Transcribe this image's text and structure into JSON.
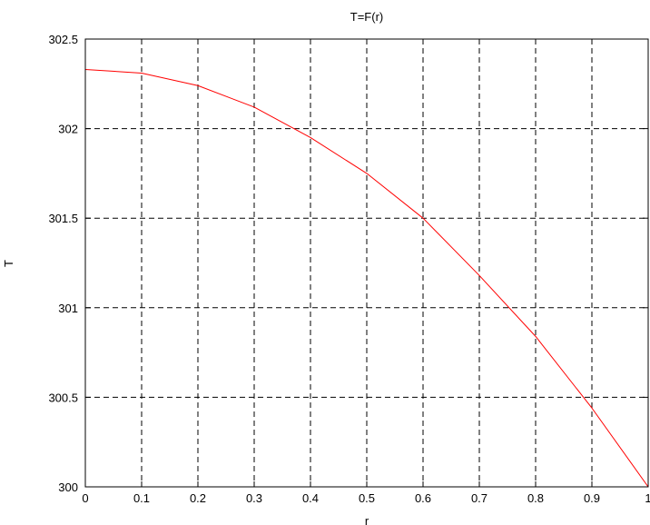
{
  "chart_data": {
    "type": "line",
    "title": "T=F(r)",
    "xlabel": "r",
    "ylabel": "T",
    "xlim": [
      0,
      1
    ],
    "ylim": [
      300,
      302.5
    ],
    "xticks": [
      0,
      0.1,
      0.2,
      0.3,
      0.4,
      0.5,
      0.6,
      0.7,
      0.8,
      0.9,
      1
    ],
    "yticks": [
      300,
      300.5,
      301,
      301.5,
      302,
      302.5
    ],
    "xtick_labels": [
      "0",
      "0.1",
      "0.2",
      "0.3",
      "0.4",
      "0.5",
      "0.6",
      "0.7",
      "0.8",
      "0.9",
      "1"
    ],
    "ytick_labels": [
      "300",
      "300.5",
      "301",
      "301.5",
      "302",
      "302.5"
    ],
    "grid": true,
    "series": [
      {
        "color": "#ff0000",
        "x": [
          0,
          0.1,
          0.2,
          0.3,
          0.4,
          0.5,
          0.6,
          0.7,
          0.8,
          0.9,
          1
        ],
        "y": [
          302.33,
          302.31,
          302.24,
          302.12,
          301.95,
          301.75,
          301.5,
          301.18,
          300.84,
          300.44,
          300.0
        ]
      }
    ]
  }
}
